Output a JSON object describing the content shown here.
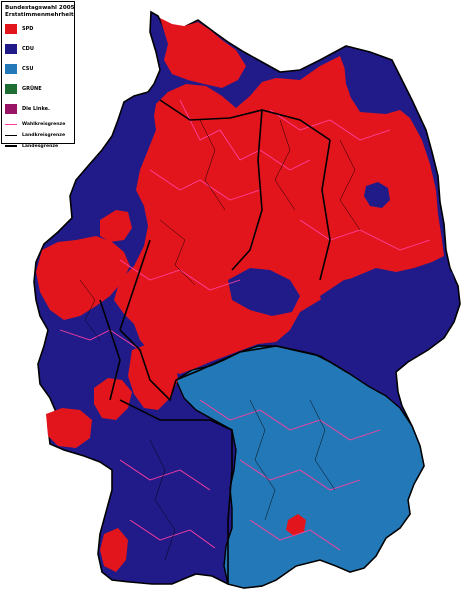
{
  "legend": {
    "title": "Bundestagswahl 2005",
    "subtitle": "Erststimmenmehrheit",
    "parties": [
      {
        "label": "SPD",
        "color": "#e3151c"
      },
      {
        "label": "CDU",
        "color": "#211b8a"
      },
      {
        "label": "CSU",
        "color": "#2379b7"
      },
      {
        "label": "GRÜNE",
        "color": "#1e6e33"
      },
      {
        "label": "Die Linke.",
        "color": "#9a1466"
      }
    ],
    "boundaries": [
      {
        "label": "Wahlkreisgrenze",
        "color": "#ff3fa0",
        "style": "thin"
      },
      {
        "label": "Landkreisgrenze",
        "color": "#000000",
        "style": "thin"
      },
      {
        "label": "Landesgrenze",
        "color": "#000000",
        "style": "thick"
      }
    ]
  }
}
